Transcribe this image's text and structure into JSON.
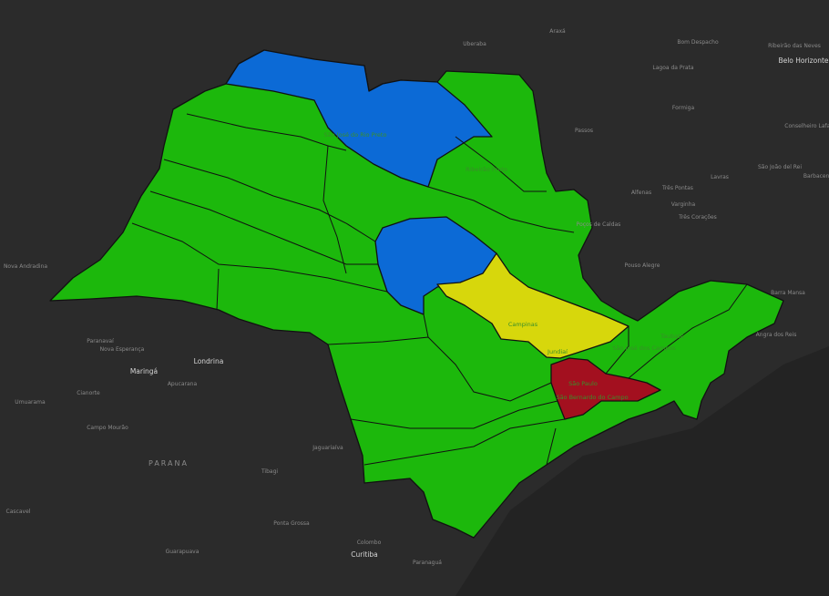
{
  "labels": [
    "Uberaba",
    "Araxá",
    "Bom Despacho",
    "Ribeirão das Neves",
    "Belo Horizonte",
    "Lagoa da Prata",
    "Formiga",
    "Passos",
    "Conselheiro Lafaiete",
    "São João del Rei",
    "Barbacena",
    "Lavras",
    "Três Pontas",
    "Varginha",
    "Três Corações",
    "Alfenas",
    "Poços de Caldas",
    "Pouso Alegre",
    "Barra Mansa",
    "Angra dos Reis",
    "Paranavaí",
    "Nova Esperança",
    "Maringá",
    "Londrina",
    "Apucarana",
    "Cianorte",
    "Umuarama",
    "Campo Mourão",
    "PARANA",
    "Jaguariaíva",
    "Tibagi",
    "Ponta Grossa",
    "Colombo",
    "Curitiba",
    "Paranaguá",
    "Guarapuava",
    "Cascavel",
    "Nova Andradina",
    "São José do Rio Preto",
    "Ribeirão Preto",
    "Campinas",
    "Jundiaí",
    "São Paulo",
    "São Bernardo do Campo",
    "São José dos Campos",
    "Taubaté"
  ]
}
